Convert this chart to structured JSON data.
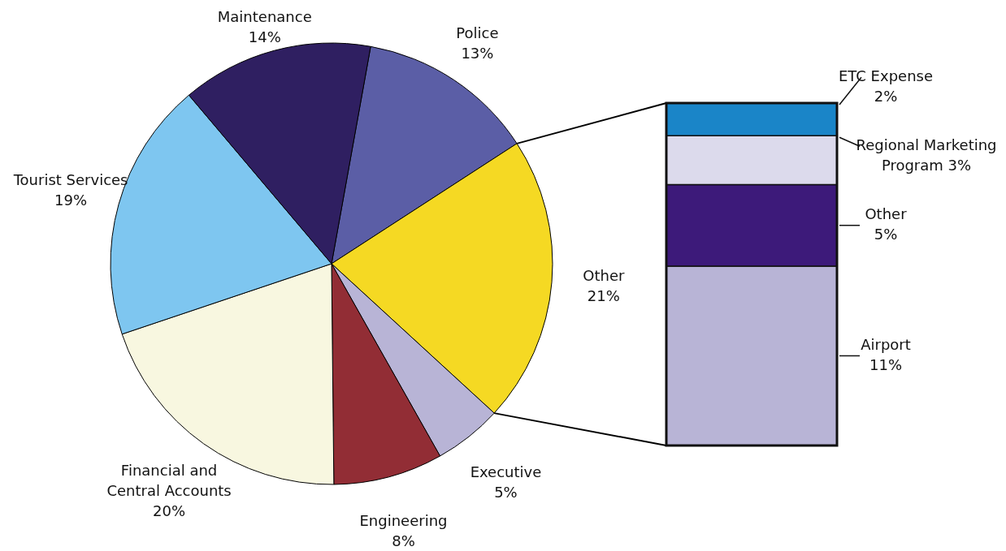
{
  "chart_data": [
    {
      "type": "pie",
      "categories": [
        "Police",
        "Other",
        "Executive",
        "Engineering",
        "Financial and Central Accounts",
        "Tourist Services",
        "Maintenance"
      ],
      "values": [
        13,
        21,
        5,
        8,
        20,
        19,
        14
      ],
      "value_labels": [
        "13%",
        "21%",
        "5%",
        "8%",
        "20%",
        "19%",
        "14%"
      ],
      "colors": [
        "#5b5ea6",
        "#f5d923",
        "#b8b4d6",
        "#922d35",
        "#f8f7e0",
        "#7ec6f0",
        "#2f1f61"
      ]
    },
    {
      "type": "bar",
      "categories": [
        null
      ],
      "stacked": true,
      "ylim": [
        0,
        21
      ],
      "series": [
        {
          "name": "Airport",
          "color": "#b8b4d6",
          "values": [
            11
          ],
          "value_labels": [
            "11%"
          ]
        },
        {
          "name": "Other",
          "color": "#3d1a7a",
          "values": [
            5
          ],
          "value_labels": [
            "5%"
          ]
        },
        {
          "name": "Regional Marketing Program",
          "color": "#dcdaec",
          "values": [
            3
          ],
          "value_labels": [
            "3%"
          ]
        },
        {
          "name": "ETC Expense",
          "color": "#1a85c8",
          "values": [
            2
          ],
          "value_labels": [
            "2%"
          ]
        }
      ]
    }
  ]
}
